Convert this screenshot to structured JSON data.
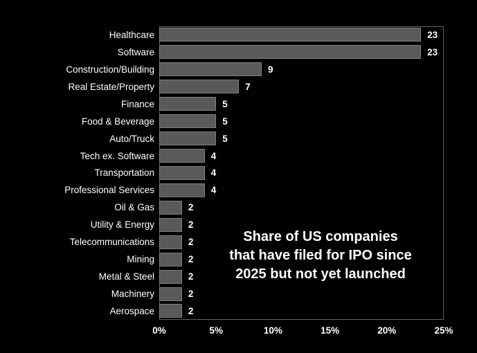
{
  "chart_data": {
    "type": "bar",
    "orientation": "horizontal",
    "categories": [
      "Healthcare",
      "Software",
      "Construction/Building",
      "Real Estate/Property",
      "Finance",
      "Food & Beverage",
      "Auto/Truck",
      "Tech ex. Software",
      "Transportation",
      "Professional Services",
      "Oil & Gas",
      "Utility & Energy",
      "Telecommunications",
      "Mining",
      "Metal & Steel",
      "Machinery",
      "Aerospace"
    ],
    "values": [
      23,
      23,
      9,
      7,
      5,
      5,
      5,
      4,
      4,
      4,
      2,
      2,
      2,
      2,
      2,
      2,
      2
    ],
    "xlim": [
      0,
      25
    ],
    "xticks": [
      "0%",
      "5%",
      "10%",
      "15%",
      "20%",
      "25%"
    ],
    "xtick_values": [
      0,
      5,
      10,
      15,
      20,
      25
    ],
    "grid": false,
    "legend": "none",
    "annotation": {
      "line1": "Share of US companies",
      "line2": "that have filed for IPO since",
      "line3": "2025 but not yet launched"
    },
    "colors": {
      "background": "#000000",
      "bar_fill": "#595959",
      "bar_border": "#7f7f7f",
      "plot_border": "#636363",
      "text": "#ffffff"
    }
  }
}
